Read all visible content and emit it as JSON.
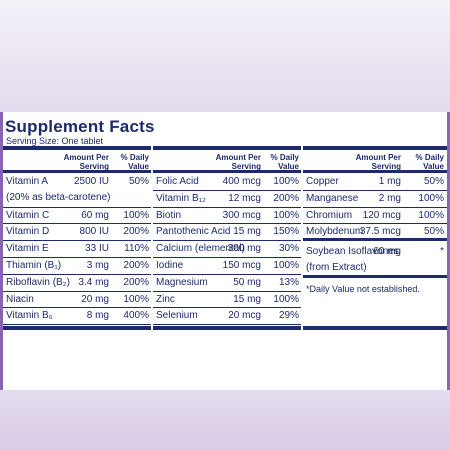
{
  "header": {
    "title": "Supplement Facts",
    "serving_size": "Serving Size: One tablet"
  },
  "columns": [
    {
      "amount_header": "Amount Per Serving",
      "dv_header": "% Daily Value",
      "rows": [
        {
          "name": "Vitamin A",
          "amount": "2500 IU",
          "dv": "50%",
          "note": "(20% as beta-carotene)"
        },
        {
          "name": "Vitamin C",
          "amount": "60 mg",
          "dv": "100%"
        },
        {
          "name": "Vitamin D",
          "amount": "800 IU",
          "dv": "200%"
        },
        {
          "name": "Vitamin E",
          "amount": "33 IU",
          "dv": "110%"
        },
        {
          "name": "Thiamin (B₁)",
          "amount": "3 mg",
          "dv": "200%"
        },
        {
          "name": "Riboflavin (B₂)",
          "amount": "3.4 mg",
          "dv": "200%"
        },
        {
          "name": "Niacin",
          "amount": "20 mg",
          "dv": "100%"
        },
        {
          "name": "Vitamin B₆",
          "amount": "8 mg",
          "dv": "400%"
        }
      ]
    },
    {
      "amount_header": "Amount Per Serving",
      "dv_header": "% Daily Value",
      "rows": [
        {
          "name": "Folic Acid",
          "amount": "400 mcg",
          "dv": "100%"
        },
        {
          "name": "Vitamin B₁₂",
          "amount": "12 mcg",
          "dv": "200%"
        },
        {
          "name": "Biotin",
          "amount": "300 mcg",
          "dv": "100%"
        },
        {
          "name": "Pantothenic Acid",
          "amount": "15 mg",
          "dv": "150%"
        },
        {
          "name": "Calcium (elemental)",
          "amount": "300 mg",
          "dv": "30%"
        },
        {
          "name": "Iodine",
          "amount": "150 mcg",
          "dv": "100%"
        },
        {
          "name": "Magnesium",
          "amount": "50 mg",
          "dv": "13%"
        },
        {
          "name": "Zinc",
          "amount": "15 mg",
          "dv": "100%"
        },
        {
          "name": "Selenium",
          "amount": "20 mcg",
          "dv": "29%"
        }
      ]
    },
    {
      "amount_header": "Amount Per Serving",
      "dv_header": "% Daily Value",
      "rows": [
        {
          "name": "Copper",
          "amount": "1 mg",
          "dv": "50%"
        },
        {
          "name": "Manganese",
          "amount": "2 mg",
          "dv": "100%"
        },
        {
          "name": "Chromium",
          "amount": "120 mcg",
          "dv": "100%"
        },
        {
          "name": "Molybdenum",
          "amount": "37.5 mcg",
          "dv": "50%"
        },
        {
          "name": "Soybean Isoflavones",
          "amount": "60 mg",
          "dv": "*",
          "note": "(from Extract)"
        }
      ],
      "footnote": "*Daily Value not established."
    }
  ]
}
